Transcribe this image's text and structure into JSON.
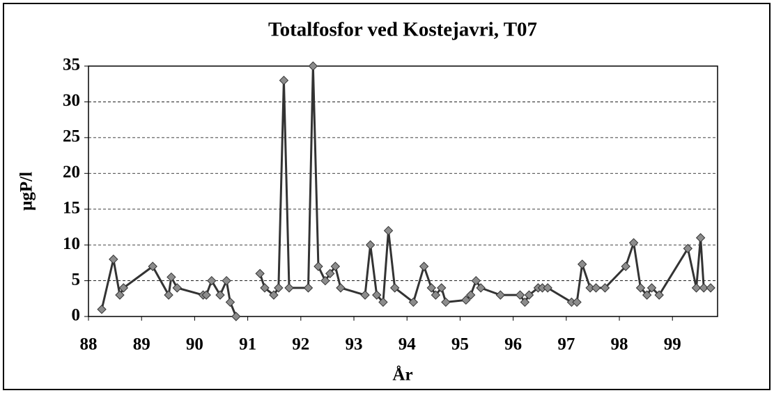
{
  "chart_data": {
    "type": "line",
    "title": "Totalfosfor ved Kostejavri, T07",
    "x_label": "År",
    "y_label": "µgP/l",
    "x": [
      88.25,
      88.47,
      88.59,
      88.66,
      89.21,
      89.51,
      89.56,
      89.67,
      90.16,
      90.22,
      90.32,
      90.48,
      90.6,
      90.67,
      90.78,
      null,
      91.23,
      91.32,
      91.49,
      91.58,
      91.68,
      91.78,
      92.14,
      92.23,
      92.33,
      92.46,
      92.55,
      92.65,
      92.75,
      93.21,
      93.31,
      93.43,
      93.55,
      93.65,
      93.77,
      94.12,
      94.32,
      94.46,
      94.54,
      94.65,
      94.73,
      95.11,
      95.2,
      95.3,
      95.39,
      95.76,
      96.13,
      96.22,
      96.3,
      96.47,
      96.55,
      96.65,
      97.1,
      97.2,
      97.3,
      97.45,
      97.56,
      97.73,
      98.12,
      98.27,
      98.4,
      98.52,
      98.61,
      98.75,
      99.29,
      99.45,
      99.53,
      99.59,
      99.72
    ],
    "series": [
      {
        "color": "#333333",
        "marker_color": "#8c8c8c",
        "values": [
          1,
          8,
          3,
          4,
          7,
          3,
          5.5,
          4,
          3,
          3,
          5,
          3,
          5,
          2,
          0,
          null,
          6,
          4,
          3,
          4,
          33,
          4,
          4,
          35,
          7,
          5,
          6,
          7,
          4,
          3,
          10,
          3,
          2,
          12,
          4,
          2,
          7,
          4,
          3,
          4,
          2,
          2.3,
          3,
          5,
          4,
          3,
          3,
          2,
          3,
          4,
          4,
          4,
          2,
          2,
          7.3,
          4,
          4,
          4,
          7,
          10.3,
          4,
          3,
          4,
          3,
          9.5,
          4,
          11,
          4,
          4
        ]
      }
    ],
    "xlim": [
      88,
      99.85
    ],
    "xticks": [
      88,
      89,
      90,
      91,
      92,
      93,
      94,
      95,
      96,
      97,
      98,
      99
    ],
    "ylim": [
      0,
      35
    ],
    "yticks": [
      0,
      5,
      10,
      15,
      20,
      25,
      30,
      35
    ],
    "grid": true
  }
}
